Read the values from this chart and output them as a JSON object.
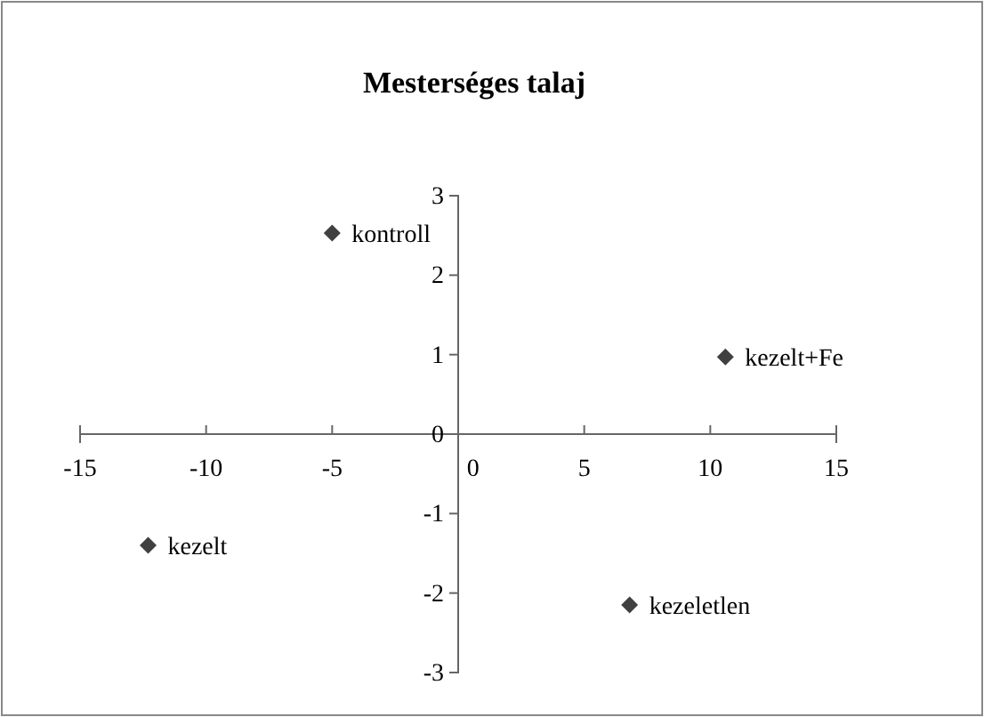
{
  "chart_data": {
    "type": "scatter",
    "title": "Mesterséges talaj",
    "x": [
      -5.0,
      10.6,
      -12.3,
      6.8
    ],
    "series": [
      {
        "color": "#404040",
        "values": [
          2.53,
          0.97,
          -1.4,
          -2.15
        ]
      }
    ],
    "marker": "diamond",
    "xlim": [
      -15,
      15
    ],
    "xticks": [
      -15,
      -10,
      -5,
      0,
      5,
      10,
      15
    ],
    "ylim": [
      -3,
      3
    ],
    "yticks": [
      -3,
      -2,
      -1,
      0,
      1,
      2,
      3
    ],
    "grid": false,
    "annotations": [
      {
        "text": "kontroll",
        "x": -5.0,
        "y": 2.53
      },
      {
        "text": "kezelt+Fe",
        "x": 10.6,
        "y": 0.97
      },
      {
        "text": "kezelt",
        "x": -12.3,
        "y": -1.4
      },
      {
        "text": "kezeletlen",
        "x": 6.8,
        "y": -2.15
      }
    ]
  }
}
